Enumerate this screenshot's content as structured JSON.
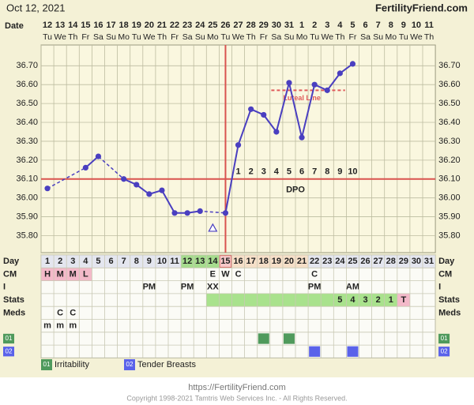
{
  "header": {
    "date": "Oct 12, 2021",
    "site": "FertilityFriend.com"
  },
  "chart_data": {
    "type": "line",
    "date_label": "Date",
    "dates": [
      12,
      13,
      14,
      15,
      16,
      17,
      18,
      19,
      20,
      21,
      22,
      23,
      24,
      25,
      26,
      27,
      28,
      29,
      30,
      31,
      1,
      2,
      3,
      4,
      5,
      6,
      7,
      8,
      9,
      10,
      11
    ],
    "weekdays": [
      "Tu",
      "We",
      "Th",
      "Fr",
      "Sa",
      "Su",
      "Mo",
      "Tu",
      "We",
      "Th",
      "Fr",
      "Sa",
      "Su",
      "Mo",
      "Tu",
      "We",
      "Th",
      "Fr",
      "Sa",
      "Su",
      "Mo",
      "Tu",
      "We",
      "Th",
      "Fr",
      "Sa",
      "Su",
      "Mo",
      "Tu",
      "We",
      "Th"
    ],
    "x": [
      1,
      2,
      3,
      4,
      5,
      6,
      7,
      8,
      9,
      10,
      11,
      12,
      13,
      14,
      15,
      16,
      17,
      18,
      19,
      20,
      21,
      22,
      23,
      24,
      25,
      26,
      27,
      28,
      29,
      30,
      31
    ],
    "series": [
      {
        "color": "#4a3fc0",
        "values": [
          36.05,
          null,
          null,
          36.16,
          36.22,
          null,
          36.1,
          36.07,
          36.02,
          36.04,
          35.92,
          35.92,
          35.93,
          null,
          35.92,
          36.28,
          36.47,
          36.44,
          36.35,
          36.61,
          36.32,
          36.6,
          36.57,
          36.66,
          36.71,
          null,
          null,
          null,
          null,
          null,
          null
        ]
      }
    ],
    "discarded": {
      "color": "#4a3fc0",
      "values": [
        null,
        null,
        null,
        null,
        null,
        null,
        null,
        null,
        null,
        null,
        null,
        null,
        null,
        35.84,
        null,
        null,
        null,
        null,
        null,
        null,
        null,
        null,
        null,
        null,
        null,
        null,
        null,
        null,
        null,
        null,
        null
      ]
    },
    "ylim": [
      35.71,
      36.81
    ],
    "yticks": [
      {
        "value": 35.8,
        "label": "35.80"
      },
      {
        "value": 35.9,
        "label": "35.90"
      },
      {
        "value": 36.0,
        "label": "36.00"
      },
      {
        "value": 36.1,
        "label": "36.10"
      },
      {
        "value": 36.2,
        "label": "36.20"
      },
      {
        "value": 36.3,
        "label": "36.30"
      },
      {
        "value": 36.4,
        "label": "36.40"
      },
      {
        "value": 36.5,
        "label": "36.50"
      },
      {
        "value": 36.6,
        "label": "36.60"
      },
      {
        "value": 36.7,
        "label": "36.70"
      }
    ],
    "grid": true,
    "coverline": {
      "value": 36.1,
      "color": "#d9534f"
    },
    "ovulation_day": 15,
    "dpo": [
      1,
      2,
      3,
      4,
      5,
      6,
      7,
      8,
      9,
      10
    ],
    "dpo_label": "DPO",
    "luteal_line": {
      "label": "Luteal Line",
      "value": 36.57,
      "days": [
        18.6,
        24.4
      ],
      "color": "#e05a5a"
    }
  },
  "table": {
    "day_label": "Day",
    "day_highlights": [
      {
        "days": [
          12,
          14
        ],
        "color": "#a6dc8e"
      },
      {
        "days": [
          15,
          15
        ],
        "color": "#f6c9c9"
      },
      {
        "days": [
          16,
          21
        ],
        "color": "#f6dfc8"
      }
    ],
    "rows": [
      {
        "label": "CM",
        "cells": [
          "H",
          "M",
          "M",
          "L",
          null,
          null,
          null,
          null,
          null,
          null,
          null,
          null,
          null,
          "E",
          "W",
          "C",
          null,
          null,
          null,
          null,
          null,
          "C",
          null,
          null,
          null,
          null,
          null,
          null,
          null,
          null,
          null
        ],
        "highlights": [
          {
            "days": [
              1,
              4
            ],
            "color": "#f3b9c9"
          }
        ]
      },
      {
        "label": "I",
        "cells": [
          null,
          null,
          null,
          null,
          null,
          null,
          null,
          null,
          "PM",
          null,
          null,
          "PM",
          null,
          "XX",
          null,
          null,
          null,
          null,
          null,
          null,
          null,
          "PM",
          null,
          null,
          "AM",
          null,
          null,
          null,
          null,
          null,
          null
        ]
      },
      {
        "label": "Stats",
        "cells": [
          null,
          null,
          null,
          null,
          null,
          null,
          null,
          null,
          null,
          null,
          null,
          null,
          null,
          null,
          null,
          null,
          null,
          null,
          null,
          null,
          null,
          null,
          null,
          5,
          4,
          3,
          2,
          1,
          "T",
          null,
          null
        ],
        "highlights": [
          {
            "days": [
              14,
              28
            ],
            "color": "#a9e28d"
          },
          {
            "days": [
              29,
              29
            ],
            "color": "#f3b9c9"
          }
        ]
      },
      {
        "label": "Meds",
        "cells": [
          null,
          "C",
          "C",
          null,
          null,
          null,
          null,
          null,
          null,
          null,
          null,
          null,
          null,
          null,
          null,
          null,
          null,
          null,
          null,
          null,
          null,
          null,
          null,
          null,
          null,
          null,
          null,
          null,
          null,
          null,
          null
        ]
      },
      {
        "label": null,
        "cells": [
          "m",
          "m",
          "m",
          null,
          null,
          null,
          null,
          null,
          null,
          null,
          null,
          null,
          null,
          null,
          null,
          null,
          null,
          null,
          null,
          null,
          null,
          null,
          null,
          null,
          null,
          null,
          null,
          null,
          null,
          null,
          null
        ]
      }
    ],
    "symptoms": [
      {
        "code": "01",
        "label": "Irritability",
        "color": "#4f9a5c",
        "days": [
          18,
          20
        ]
      },
      {
        "code": "02",
        "label": "Tender Breasts",
        "color": "#5a62ea",
        "days": [
          22,
          25
        ]
      }
    ]
  },
  "footer": {
    "url": "https://FertilityFriend.com",
    "copyright": "Copyright 1998-2021 Tamtris Web Services Inc. - All Rights Reserved."
  }
}
